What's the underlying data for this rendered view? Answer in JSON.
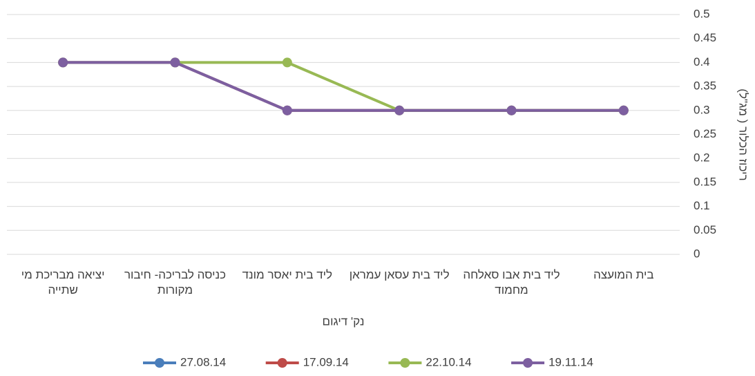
{
  "chart_data": {
    "type": "line",
    "x_label": "נק' דיגום",
    "y_label": "ריכוז הכלור ( מג\"ל)",
    "categories": [
      "בית המועצה",
      "ליד בית אבו סאלחה מחמוד",
      "ליד בית עסאן עמראן",
      "ליד בית יאסר מונד",
      "כניסה לבריכה- חיבור מקורות",
      "יציאה מבריכת מי שתייה"
    ],
    "series": [
      {
        "name": "27.08.14",
        "color": "#4a7ebb",
        "values": [
          0.3,
          0.3,
          0.3,
          0.3,
          0.4,
          0.4
        ]
      },
      {
        "name": "17.09.14",
        "color": "#be4b48",
        "values": [
          0.3,
          0.3,
          0.3,
          0.3,
          0.4,
          0.4
        ]
      },
      {
        "name": "22.10.14",
        "color": "#98b954",
        "values": [
          0.3,
          0.3,
          0.3,
          0.4,
          0.4,
          0.4
        ]
      },
      {
        "name": "19.11.14",
        "color": "#7d5fa0",
        "values": [
          0.3,
          0.3,
          0.3,
          0.3,
          0.4,
          0.4
        ]
      }
    ],
    "ylim": [
      0,
      0.5
    ],
    "yticks": [
      0,
      0.05,
      0.1,
      0.15,
      0.2,
      0.25,
      0.3,
      0.35,
      0.4,
      0.45,
      0.5
    ],
    "x_reversed": true,
    "y_axis_side": "right",
    "grid": true,
    "legend": "bottom"
  }
}
